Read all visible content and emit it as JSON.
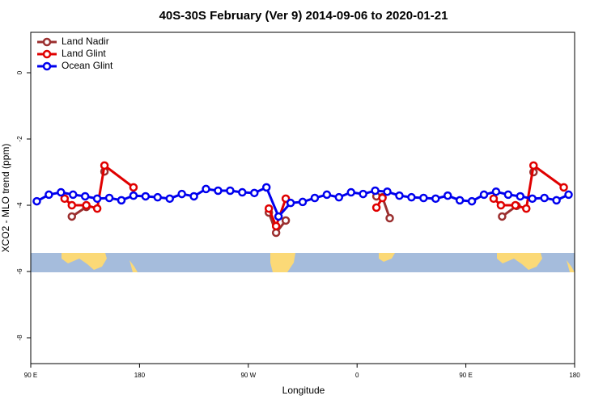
{
  "chart_data": {
    "type": "line",
    "title": "40S-30S February (Ver 9)   2014-09-06 to 2020-01-21",
    "x_label": "Longitude",
    "y_label": "XCO2 - MLO trend (ppm)",
    "xlim": [
      90,
      540
    ],
    "ylim": [
      -8.78,
      1.22
    ],
    "xticks": [
      {
        "value": 90,
        "label": "90 E"
      },
      180,
      {
        "value": 270,
        "label": "90 W"
      },
      {
        "value": 360,
        "label": "0"
      },
      {
        "value": 450,
        "label": "90 E"
      },
      {
        "value": 540,
        "label": "180"
      }
    ],
    "yticks": [
      0,
      -2,
      -4,
      -6,
      -8
    ],
    "legend": "top-left",
    "series": [
      {
        "name": "Land Nadir",
        "color": "#9b2f2f",
        "x": [
          124,
          136,
          null,
          151,
          null,
          287,
          293,
          301,
          null,
          376,
          381,
          387,
          null,
          480,
          492,
          null,
          506
        ],
        "values": [
          -4.34,
          -4.05,
          null,
          -2.98,
          null,
          -4.22,
          -4.83,
          -4.46,
          null,
          -3.73,
          -3.76,
          -4.39,
          null,
          -4.34,
          -4.02,
          null,
          -3.0
        ]
      },
      {
        "name": "Land Glint",
        "color": "#e00000",
        "x": [
          118,
          124,
          136,
          145,
          151,
          175,
          null,
          287,
          293,
          301,
          null,
          376,
          381,
          null,
          473,
          479,
          491,
          500,
          506,
          531
        ],
        "values": [
          -3.8,
          -4.0,
          -4.0,
          -4.1,
          -2.8,
          -3.46,
          null,
          -4.1,
          -4.63,
          -3.8,
          null,
          -4.07,
          -3.78,
          null,
          -3.8,
          -4.0,
          -4.0,
          -4.1,
          -2.8,
          -3.46
        ]
      },
      {
        "name": "Ocean Glint",
        "color": "#0000ee",
        "x": [
          95,
          105,
          115,
          125,
          135,
          145,
          155,
          165,
          175,
          185,
          195,
          205,
          215,
          225,
          235,
          245,
          255,
          265,
          275,
          285,
          295,
          305,
          315,
          325,
          335,
          345,
          355,
          365,
          375,
          385,
          395,
          405,
          415,
          425,
          435,
          445,
          455,
          465,
          475,
          485,
          495,
          505,
          515,
          525,
          535
        ],
        "values": [
          -3.88,
          -3.68,
          -3.61,
          -3.68,
          -3.73,
          -3.8,
          -3.78,
          -3.85,
          -3.71,
          -3.73,
          -3.76,
          -3.8,
          -3.66,
          -3.73,
          -3.51,
          -3.56,
          -3.56,
          -3.61,
          -3.63,
          -3.46,
          -4.34,
          -3.93,
          -3.9,
          -3.78,
          -3.68,
          -3.76,
          -3.61,
          -3.66,
          -3.56,
          -3.59,
          -3.71,
          -3.76,
          -3.78,
          -3.8,
          -3.71,
          -3.85,
          -3.88,
          -3.68,
          -3.59,
          -3.68,
          -3.73,
          -3.8,
          -3.78,
          -3.85,
          -3.68
        ]
      }
    ]
  }
}
